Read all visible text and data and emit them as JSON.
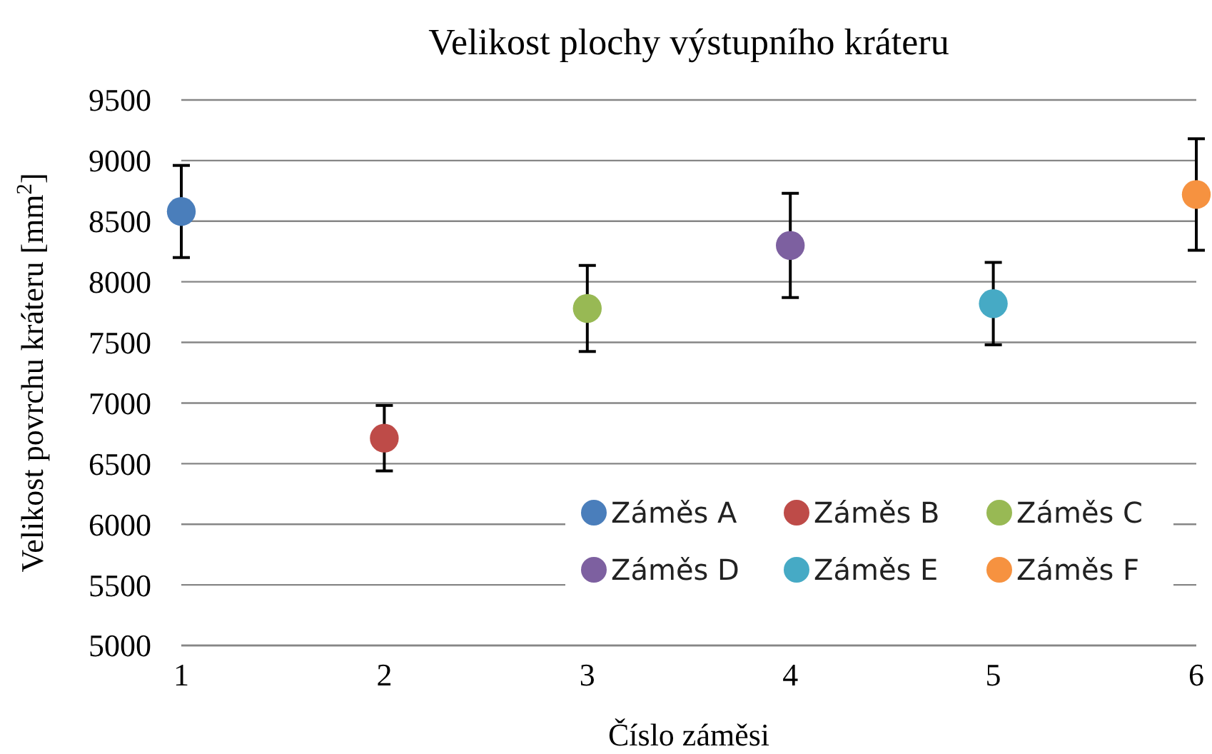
{
  "chart_data": {
    "type": "scatter",
    "title": "Velikost plochy výstupního kráteru",
    "xlabel": "Číslo záměsi",
    "ylabel": "Velikost povrchu kráteru [mm$^{2}$]",
    "xlim": [
      1,
      6
    ],
    "xticks": [
      1,
      2,
      3,
      4,
      5,
      6
    ],
    "ylim": [
      5000,
      9500
    ],
    "yticks": [
      5000,
      5500,
      6000,
      6500,
      7000,
      7500,
      8000,
      8500,
      9000,
      9500
    ],
    "grid": "y",
    "legend": "bottom right",
    "marker": "circle",
    "series": [
      {
        "name": "Záměs A",
        "color": "#4a7ebb",
        "x": [
          1
        ],
        "values": [
          8580
        ],
        "errors": [
          380
        ]
      },
      {
        "name": "Záměs B",
        "color": "#be4b48",
        "x": [
          2
        ],
        "values": [
          6710
        ],
        "errors": [
          270
        ]
      },
      {
        "name": "Záměs C",
        "color": "#98b954",
        "x": [
          3
        ],
        "values": [
          7780
        ],
        "errors": [
          355
        ]
      },
      {
        "name": "Záměs D",
        "color": "#7d60a0",
        "x": [
          4
        ],
        "values": [
          8300
        ],
        "errors": [
          430
        ]
      },
      {
        "name": "Záměs E",
        "color": "#46aac5",
        "x": [
          5
        ],
        "values": [
          7820
        ],
        "errors": [
          340
        ]
      },
      {
        "name": "Záměs F",
        "color": "#f69240",
        "x": [
          6
        ],
        "values": [
          8720
        ],
        "errors": [
          460
        ]
      }
    ]
  }
}
